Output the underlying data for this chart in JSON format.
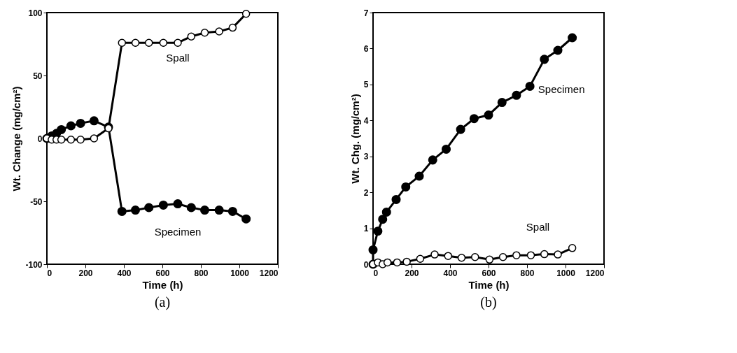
{
  "chart_data": [
    {
      "type": "line",
      "title": "(a)",
      "xlabel": "Time  (h)",
      "ylabel": "Wt. Change (mg/cm²)",
      "xlim": [
        0,
        1200
      ],
      "xticks": [
        0,
        200,
        400,
        600,
        800,
        1000,
        1200
      ],
      "ylim": [
        -100,
        100
      ],
      "yticks": [
        -100,
        -50,
        0,
        50,
        100
      ],
      "grid": false,
      "legend": false,
      "marker": "circle",
      "line_style": "solid",
      "series": [
        {
          "name": "Specimen",
          "color": "#000000",
          "x": [
            0,
            25,
            50,
            75,
            125,
            175,
            245,
            320,
            390,
            460,
            530,
            605,
            680,
            750,
            820,
            895,
            965,
            1035
          ],
          "values": [
            0,
            2,
            4,
            7,
            10,
            12,
            14,
            9,
            -58,
            -57,
            -55,
            -53,
            -52,
            -55,
            -57,
            -57,
            -58,
            -64
          ]
        },
        {
          "name": "Spall",
          "color": "#000000",
          "x": [
            0,
            25,
            50,
            75,
            125,
            175,
            245,
            320,
            390,
            460,
            530,
            605,
            680,
            750,
            820,
            895,
            965,
            1035
          ],
          "values": [
            0,
            -1,
            -1,
            -1,
            -1,
            -1,
            0,
            8,
            76,
            76,
            76,
            76,
            76,
            81,
            84,
            85,
            88,
            99
          ]
        }
      ]
    },
    {
      "type": "line",
      "title": "(b)",
      "xlabel": "Time  (h)",
      "ylabel": "Wt. Chg. (mg/cm²)",
      "xlim": [
        0,
        1200
      ],
      "xticks": [
        0,
        200,
        400,
        600,
        800,
        1000,
        1200
      ],
      "ylim": [
        0,
        7
      ],
      "yticks": [
        0,
        1,
        2,
        3,
        4,
        5,
        6,
        7
      ],
      "grid": false,
      "legend": false,
      "marker": "circle",
      "line_style": "solid",
      "series": [
        {
          "name": "Specimen",
          "color": "#000000",
          "x": [
            0,
            0,
            25,
            50,
            70,
            120,
            170,
            240,
            310,
            380,
            455,
            525,
            600,
            670,
            745,
            815,
            890,
            960,
            1035
          ],
          "values": [
            0,
            0.4,
            0.92,
            1.25,
            1.45,
            1.8,
            2.15,
            2.45,
            2.9,
            3.2,
            3.75,
            4.05,
            4.15,
            4.5,
            4.7,
            4.95,
            5.7,
            5.95,
            6.3
          ]
        },
        {
          "name": "Spall",
          "color": "#000000",
          "x": [
            0,
            25,
            50,
            75,
            125,
            175,
            245,
            320,
            390,
            460,
            530,
            605,
            675,
            745,
            820,
            890,
            960,
            1035
          ],
          "values": [
            0,
            0.05,
            0,
            0.05,
            0.05,
            0.07,
            0.15,
            0.27,
            0.23,
            0.18,
            0.2,
            0.13,
            0.2,
            0.25,
            0.25,
            0.28,
            0.27,
            0.45
          ]
        }
      ]
    }
  ]
}
